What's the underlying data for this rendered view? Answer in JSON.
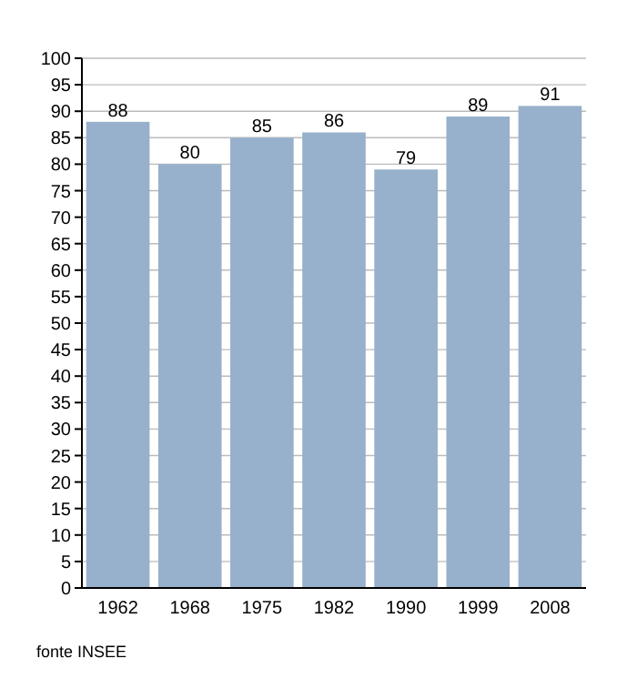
{
  "chart_data": {
    "type": "bar",
    "categories": [
      "1962",
      "1968",
      "1975",
      "1982",
      "1990",
      "1999",
      "2008"
    ],
    "values": [
      88,
      80,
      85,
      86,
      79,
      89,
      91
    ],
    "color": "#97b1cc",
    "ylim": [
      0,
      100
    ],
    "yticks": [
      0,
      5,
      10,
      15,
      20,
      25,
      30,
      35,
      40,
      45,
      50,
      55,
      60,
      65,
      70,
      75,
      80,
      85,
      90,
      95,
      100
    ],
    "grid": "y",
    "data_labels": true,
    "annotations": [
      "fonte INSEE"
    ]
  }
}
